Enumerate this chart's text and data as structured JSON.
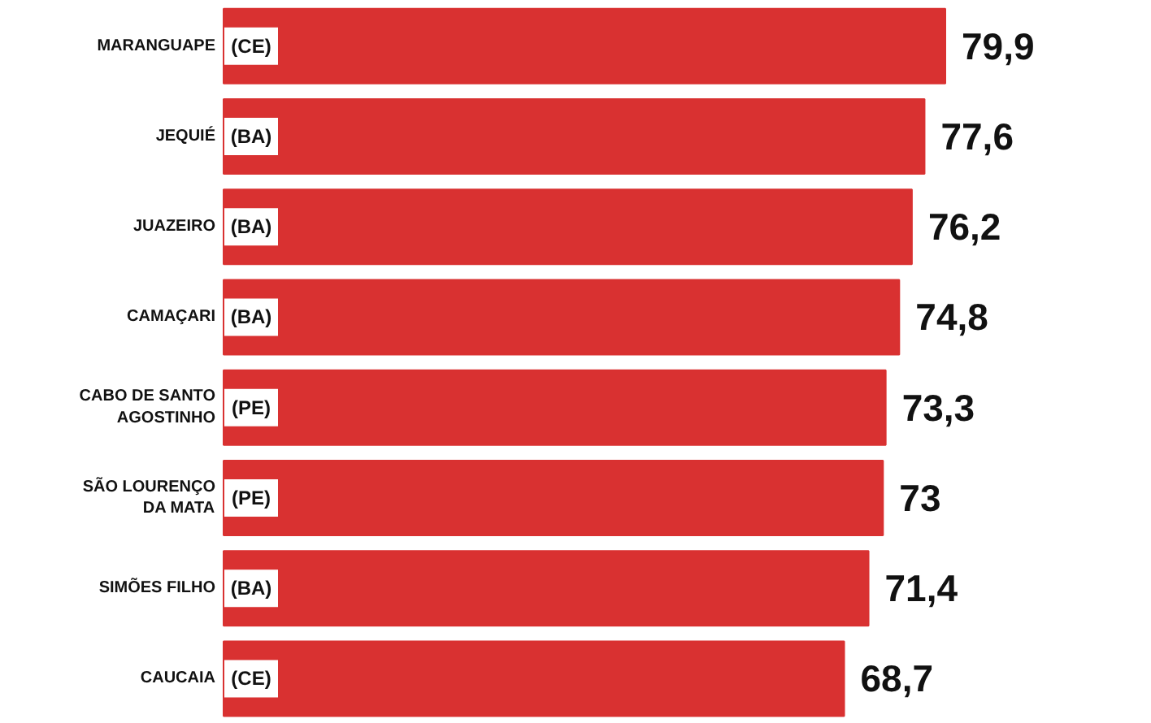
{
  "chart_data": {
    "type": "bar",
    "orientation": "horizontal",
    "color": "#d93131",
    "categories": [
      "MARANGUAPE (CE)",
      "JEQUIÉ (BA)",
      "JUAZEIRO (BA)",
      "CAMAÇARI (BA)",
      "CABO DE SANTO\nAGOSTINHO (PE)",
      "SÃO LOURENÇO\nDA MATA (PE)",
      "SIMÕES FILHO (BA)",
      "CAUCAIA (CE)"
    ],
    "values": [
      79.9,
      77.6,
      76.2,
      74.8,
      73.3,
      73,
      71.4,
      68.7
    ],
    "value_labels": [
      "79,9",
      "77,6",
      "76,2",
      "74,8",
      "73,3",
      "73",
      "71,4",
      "68,7"
    ]
  }
}
